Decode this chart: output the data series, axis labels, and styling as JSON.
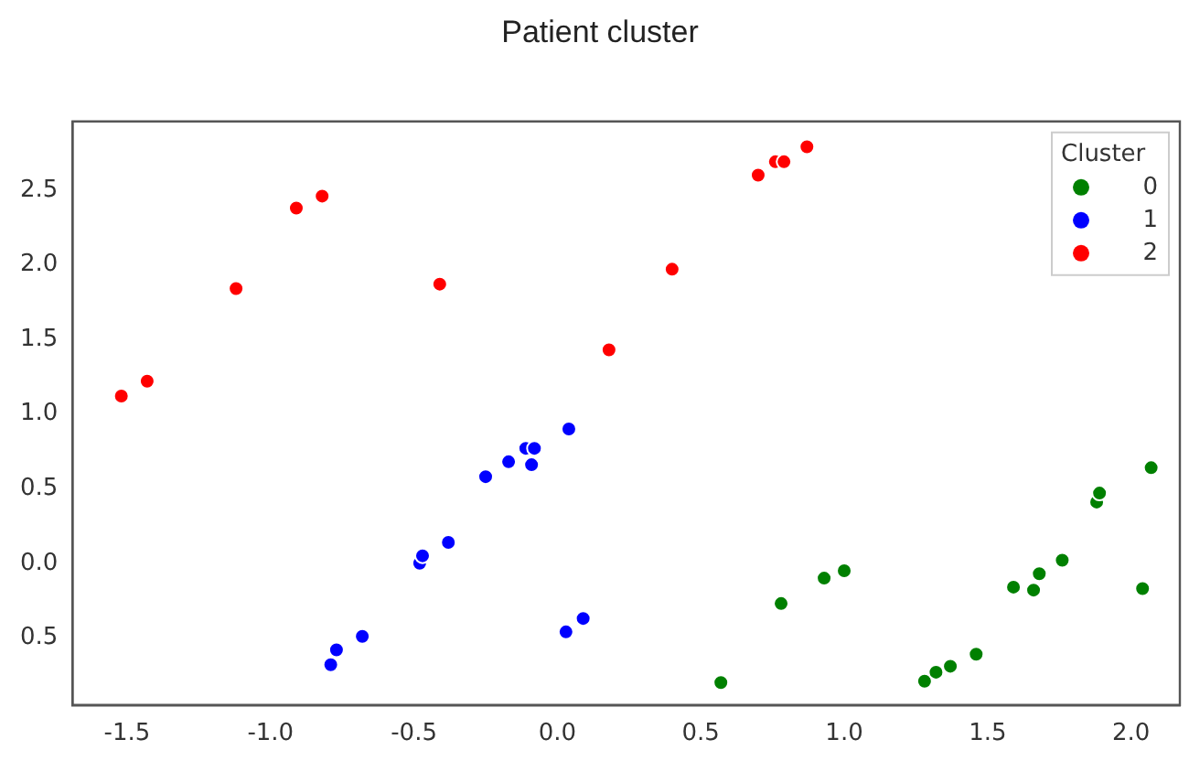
{
  "chart_data": {
    "type": "scatter",
    "title": "Patient cluster",
    "legend_title": "Cluster",
    "legend": "top right",
    "marker": "circle",
    "grid": false,
    "xlim": [
      -1.69,
      2.17
    ],
    "xticks": [
      -1.5,
      {
        "value": -1,
        "label": "-1.0"
      },
      {
        "value": -0.5,
        "label": "-0.5"
      },
      {
        "value": 0,
        "label": "0.0"
      },
      0.5,
      {
        "value": 1,
        "label": "1.0"
      },
      1.5,
      {
        "value": 2,
        "label": "2.0"
      }
    ],
    "ylim": [
      -0.95,
      2.96
    ],
    "yticks": [
      {
        "value": -0.5,
        "label": "0.5"
      },
      {
        "value": 0,
        "label": "0.0"
      },
      0.5,
      {
        "value": 1,
        "label": "1.0"
      },
      1.5,
      {
        "value": 2,
        "label": "2.0"
      },
      2.5
    ],
    "series": [
      {
        "name": "0",
        "color": "#008000",
        "x": [
          0.57,
          0.78,
          0.93,
          1.0,
          1.28,
          1.32,
          1.37,
          1.46,
          1.59,
          1.66,
          1.68,
          1.76,
          1.88,
          1.89,
          2.07,
          2.04
        ],
        "values": [
          -0.8,
          -0.27,
          -0.1,
          -0.05,
          -0.79,
          -0.73,
          -0.69,
          -0.61,
          -0.16,
          -0.18,
          -0.07,
          0.02,
          0.41,
          0.47,
          0.64,
          -0.17
        ]
      },
      {
        "name": "1",
        "color": "#0000ff",
        "x": [
          -0.79,
          -0.77,
          -0.68,
          -0.48,
          -0.47,
          -0.38,
          -0.25,
          -0.17,
          -0.11,
          -0.08,
          -0.09,
          0.04,
          0.03,
          0.09
        ],
        "values": [
          -0.68,
          -0.58,
          -0.49,
          0.0,
          0.05,
          0.14,
          0.58,
          0.68,
          0.77,
          0.77,
          0.66,
          0.9,
          -0.46,
          -0.37
        ]
      },
      {
        "name": "2",
        "color": "#ff0000",
        "x": [
          -1.52,
          -1.43,
          -1.12,
          -0.91,
          -0.82,
          -0.41,
          0.18,
          0.4,
          0.7,
          0.76,
          0.79,
          0.87
        ],
        "values": [
          1.12,
          1.22,
          1.84,
          2.38,
          2.46,
          1.87,
          1.43,
          1.97,
          2.6,
          2.69,
          2.69,
          2.79
        ]
      }
    ]
  }
}
